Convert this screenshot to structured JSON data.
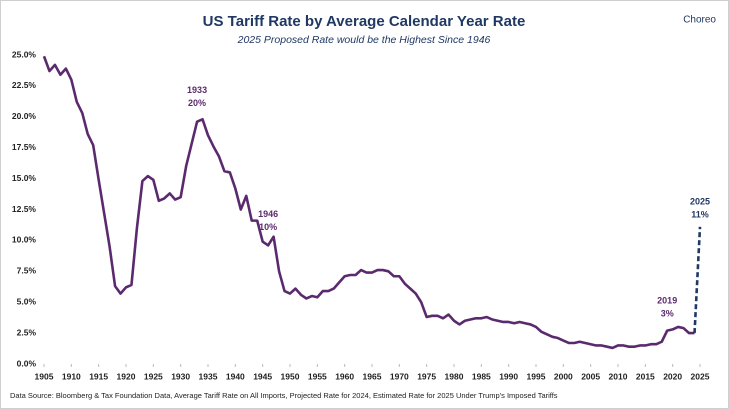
{
  "chart_data": {
    "type": "line",
    "title": "US Tariff Rate by Average Calendar Year Rate",
    "subtitle": "2025 Proposed Rate would be the Highest Since 1946",
    "logo": "Choreo",
    "source": "Data Source: Bloomberg & Tax Foundation Data, Average Tariff Rate on All Imports, Projected Rate for 2024, Estimated Rate for 2025 Under Trump's Imposed Tariffs",
    "xlim": [
      1905,
      2025
    ],
    "xticks": [
      1905,
      1910,
      1915,
      1920,
      1925,
      1930,
      1935,
      1940,
      1945,
      1950,
      1955,
      1960,
      1965,
      1970,
      1975,
      1980,
      1985,
      1990,
      1995,
      2000,
      2005,
      2010,
      2015,
      2020,
      2025
    ],
    "ylim": [
      0,
      25
    ],
    "yticks": [
      {
        "value": 0,
        "label": "0.0%"
      },
      {
        "value": 2.5,
        "label": "2.5%"
      },
      {
        "value": 5,
        "label": "5.0%"
      },
      {
        "value": 7.5,
        "label": "7.5%"
      },
      {
        "value": 10,
        "label": "10.0%"
      },
      {
        "value": 12.5,
        "label": "12.5%"
      },
      {
        "value": 15,
        "label": "15.0%"
      },
      {
        "value": 17.5,
        "label": "17.5%"
      },
      {
        "value": 20,
        "label": "20.0%"
      },
      {
        "value": 22.5,
        "label": "22.5%"
      },
      {
        "value": 25,
        "label": "25.0%"
      }
    ],
    "grid": false,
    "series": [
      {
        "color": "#5b2a6e",
        "dashed": false,
        "x": [
          1905,
          1906,
          1907,
          1908,
          1909,
          1910,
          1911,
          1912,
          1913,
          1914,
          1915,
          1916,
          1917,
          1918,
          1919,
          1920,
          1921,
          1922,
          1923,
          1924,
          1925,
          1926,
          1927,
          1928,
          1929,
          1930,
          1931,
          1932,
          1933,
          1934,
          1935,
          1936,
          1937,
          1938,
          1939,
          1940,
          1941,
          1942,
          1943,
          1944,
          1945,
          1946,
          1947,
          1948,
          1949,
          1950,
          1951,
          1952,
          1953,
          1954,
          1955,
          1956,
          1957,
          1958,
          1959,
          1960,
          1961,
          1962,
          1963,
          1964,
          1965,
          1966,
          1967,
          1968,
          1969,
          1970,
          1971,
          1972,
          1973,
          1974,
          1975,
          1976,
          1977,
          1978,
          1979,
          1980,
          1981,
          1982,
          1983,
          1984,
          1985,
          1986,
          1987,
          1988,
          1989,
          1990,
          1991,
          1992,
          1993,
          1994,
          1995,
          1996,
          1997,
          1998,
          1999,
          2000,
          2001,
          2002,
          2003,
          2004,
          2005,
          2006,
          2007,
          2008,
          2009,
          2010,
          2011,
          2012,
          2013,
          2014,
          2015,
          2016,
          2017,
          2018,
          2019,
          2020,
          2021,
          2022,
          2023,
          2024
        ],
        "values": [
          24.9,
          23.7,
          24.2,
          23.4,
          23.9,
          23.0,
          21.2,
          20.3,
          18.6,
          17.7,
          14.9,
          12.2,
          9.5,
          6.3,
          5.7,
          6.2,
          6.4,
          11.0,
          14.8,
          15.2,
          14.9,
          13.2,
          13.4,
          13.8,
          13.3,
          13.5,
          16.0,
          17.8,
          19.6,
          19.8,
          18.5,
          17.6,
          16.8,
          15.6,
          15.5,
          14.2,
          12.5,
          13.6,
          11.6,
          11.6,
          9.9,
          9.6,
          10.3,
          7.5,
          5.9,
          5.7,
          6.1,
          5.6,
          5.3,
          5.5,
          5.4,
          5.9,
          5.9,
          6.1,
          6.6,
          7.1,
          7.2,
          7.2,
          7.6,
          7.4,
          7.4,
          7.6,
          7.6,
          7.5,
          7.1,
          7.1,
          6.5,
          6.1,
          5.7,
          5.0,
          3.8,
          3.9,
          3.9,
          3.7,
          4.0,
          3.5,
          3.2,
          3.5,
          3.6,
          3.7,
          3.7,
          3.8,
          3.6,
          3.5,
          3.4,
          3.4,
          3.3,
          3.4,
          3.3,
          3.2,
          3.0,
          2.6,
          2.4,
          2.2,
          2.1,
          1.9,
          1.7,
          1.7,
          1.8,
          1.7,
          1.6,
          1.5,
          1.5,
          1.4,
          1.3,
          1.5,
          1.5,
          1.4,
          1.4,
          1.5,
          1.5,
          1.6,
          1.6,
          1.8,
          2.7,
          2.8,
          3.0,
          2.9,
          2.5,
          2.5
        ]
      },
      {
        "color": "#1f3864",
        "dashed": true,
        "x": [
          2024,
          2025
        ],
        "values": [
          2.5,
          11.1
        ]
      }
    ],
    "annotations": [
      {
        "x": 1933,
        "y": 20,
        "label": "1933",
        "value_label": "20%",
        "color": "#5b2a6e"
      },
      {
        "x": 1946,
        "y": 10,
        "label": "1946",
        "value_label": "10%",
        "color": "#5b2a6e"
      },
      {
        "x": 2019,
        "y": 3,
        "label": "2019",
        "value_label": "3%",
        "color": "#5b2a6e"
      },
      {
        "x": 2025,
        "y": 11,
        "label": "2025",
        "value_label": "11%",
        "color": "#1f3864"
      }
    ]
  }
}
